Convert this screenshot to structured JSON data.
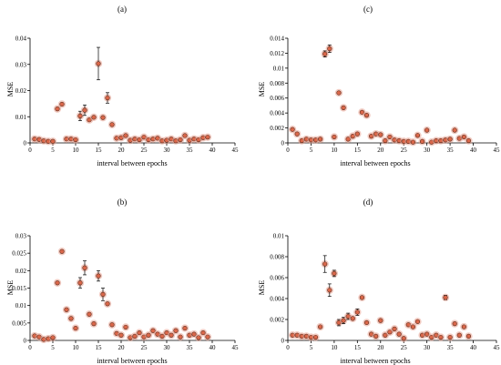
{
  "chart_data": [
    {
      "id": "a",
      "type": "scatter",
      "panel_label": "(a)",
      "xlabel": "interval between epochs",
      "ylabel": "MSE",
      "xlim": [
        0,
        45
      ],
      "ylim": [
        0,
        0.04
      ],
      "xticks": [
        0,
        5,
        10,
        15,
        20,
        25,
        30,
        35,
        40,
        45
      ],
      "yticks": [
        0,
        0.01,
        0.02,
        0.03,
        0.04
      ],
      "xtick_labels": [
        "0",
        "5",
        "10",
        "15",
        "20",
        "25",
        "30",
        "35",
        "40",
        "45"
      ],
      "ytick_labels": [
        "0",
        "0.01",
        "0.02",
        "0.03",
        "0.04"
      ],
      "points": [
        {
          "x": 1,
          "y": 0.0015
        },
        {
          "x": 2,
          "y": 0.0013
        },
        {
          "x": 3,
          "y": 0.0008
        },
        {
          "x": 4,
          "y": 0.0006
        },
        {
          "x": 5,
          "y": 0.0006
        },
        {
          "x": 6,
          "y": 0.013
        },
        {
          "x": 7,
          "y": 0.0148
        },
        {
          "x": 8,
          "y": 0.0015
        },
        {
          "x": 9,
          "y": 0.0015
        },
        {
          "x": 10,
          "y": 0.0012
        },
        {
          "x": 11,
          "y": 0.0103,
          "err": 0.0018
        },
        {
          "x": 12,
          "y": 0.0125,
          "err": 0.002
        },
        {
          "x": 13,
          "y": 0.0088
        },
        {
          "x": 14,
          "y": 0.0098
        },
        {
          "x": 15,
          "y": 0.0303,
          "err": 0.0062
        },
        {
          "x": 16,
          "y": 0.0097
        },
        {
          "x": 17,
          "y": 0.0172,
          "err": 0.002
        },
        {
          "x": 18,
          "y": 0.007
        },
        {
          "x": 19,
          "y": 0.0018
        },
        {
          "x": 20,
          "y": 0.002
        },
        {
          "x": 21,
          "y": 0.0028
        },
        {
          "x": 22,
          "y": 0.001
        },
        {
          "x": 23,
          "y": 0.0015
        },
        {
          "x": 24,
          "y": 0.0012
        },
        {
          "x": 25,
          "y": 0.0022
        },
        {
          "x": 26,
          "y": 0.0012
        },
        {
          "x": 27,
          "y": 0.0015
        },
        {
          "x": 28,
          "y": 0.0018
        },
        {
          "x": 29,
          "y": 0.0008
        },
        {
          "x": 30,
          "y": 0.001
        },
        {
          "x": 31,
          "y": 0.0015
        },
        {
          "x": 32,
          "y": 0.0008
        },
        {
          "x": 33,
          "y": 0.0012
        },
        {
          "x": 34,
          "y": 0.0028
        },
        {
          "x": 35,
          "y": 0.001
        },
        {
          "x": 36,
          "y": 0.0015
        },
        {
          "x": 37,
          "y": 0.0012
        },
        {
          "x": 38,
          "y": 0.002
        },
        {
          "x": 39,
          "y": 0.0022
        }
      ]
    },
    {
      "id": "c",
      "type": "scatter",
      "panel_label": "(c)",
      "xlabel": "interval between epochs",
      "ylabel": "MSE",
      "xlim": [
        0,
        45
      ],
      "ylim": [
        0,
        0.014
      ],
      "xticks": [
        0,
        5,
        10,
        15,
        20,
        25,
        30,
        35,
        40,
        45
      ],
      "yticks": [
        0,
        0.002,
        0.004,
        0.006,
        0.008,
        0.01,
        0.012,
        0.014
      ],
      "xtick_labels": [
        "0",
        "5",
        "10",
        "15",
        "20",
        "25",
        "30",
        "35",
        "40",
        "45"
      ],
      "ytick_labels": [
        "0",
        "0.002",
        "0.004",
        "0.006",
        "0.008",
        "0.01",
        "0.012",
        "0.014"
      ],
      "points": [
        {
          "x": 1,
          "y": 0.0018
        },
        {
          "x": 2,
          "y": 0.0012
        },
        {
          "x": 3,
          "y": 0.0003
        },
        {
          "x": 4,
          "y": 0.0005
        },
        {
          "x": 5,
          "y": 0.0004
        },
        {
          "x": 6,
          "y": 0.0004
        },
        {
          "x": 7,
          "y": 0.0005
        },
        {
          "x": 8,
          "y": 0.0119,
          "err": 0.0004
        },
        {
          "x": 9,
          "y": 0.0126,
          "err": 0.0005
        },
        {
          "x": 10,
          "y": 0.0008
        },
        {
          "x": 11,
          "y": 0.0067
        },
        {
          "x": 12,
          "y": 0.0047
        },
        {
          "x": 13,
          "y": 0.0005
        },
        {
          "x": 14,
          "y": 0.0009
        },
        {
          "x": 15,
          "y": 0.0012
        },
        {
          "x": 16,
          "y": 0.0041
        },
        {
          "x": 17,
          "y": 0.0037
        },
        {
          "x": 18,
          "y": 0.0009
        },
        {
          "x": 19,
          "y": 0.0012
        },
        {
          "x": 20,
          "y": 0.0011
        },
        {
          "x": 21,
          "y": 0.0003
        },
        {
          "x": 22,
          "y": 0.0008
        },
        {
          "x": 23,
          "y": 0.0004
        },
        {
          "x": 24,
          "y": 0.0003
        },
        {
          "x": 25,
          "y": 0.0002
        },
        {
          "x": 26,
          "y": 0.0002
        },
        {
          "x": 27,
          "y": 0.0001
        },
        {
          "x": 28,
          "y": 0.001
        },
        {
          "x": 29,
          "y": 0.0002
        },
        {
          "x": 30,
          "y": 0.0017
        },
        {
          "x": 31,
          "y": 0.0001
        },
        {
          "x": 32,
          "y": 0.0003
        },
        {
          "x": 33,
          "y": 0.0003
        },
        {
          "x": 34,
          "y": 0.0004
        },
        {
          "x": 35,
          "y": 0.0005
        },
        {
          "x": 36,
          "y": 0.0017
        },
        {
          "x": 37,
          "y": 0.0006
        },
        {
          "x": 38,
          "y": 0.0008
        },
        {
          "x": 39,
          "y": 0.0003
        }
      ]
    },
    {
      "id": "b",
      "type": "scatter",
      "panel_label": "(b)",
      "xlabel": "interval between epochs",
      "ylabel": "MSE",
      "xlim": [
        0,
        45
      ],
      "ylim": [
        0,
        0.03
      ],
      "xticks": [
        0,
        5,
        10,
        15,
        20,
        25,
        30,
        35,
        40,
        45
      ],
      "yticks": [
        0,
        0.005,
        0.01,
        0.015,
        0.02,
        0.025,
        0.03
      ],
      "xtick_labels": [
        "0",
        "5",
        "10",
        "15",
        "20",
        "25",
        "30",
        "35",
        "40",
        "45"
      ],
      "ytick_labels": [
        "0",
        "0.005",
        "0.01",
        "0.015",
        "0.02",
        "0.025",
        "0.03"
      ],
      "points": [
        {
          "x": 1,
          "y": 0.0013
        },
        {
          "x": 2,
          "y": 0.001
        },
        {
          "x": 3,
          "y": 0.0003
        },
        {
          "x": 4,
          "y": 0.0005
        },
        {
          "x": 5,
          "y": 0.0008
        },
        {
          "x": 6,
          "y": 0.0165
        },
        {
          "x": 7,
          "y": 0.0255
        },
        {
          "x": 8,
          "y": 0.0088
        },
        {
          "x": 9,
          "y": 0.0063
        },
        {
          "x": 10,
          "y": 0.0035
        },
        {
          "x": 11,
          "y": 0.0165,
          "err": 0.0015
        },
        {
          "x": 12,
          "y": 0.0208,
          "err": 0.002
        },
        {
          "x": 13,
          "y": 0.0075
        },
        {
          "x": 14,
          "y": 0.0048
        },
        {
          "x": 15,
          "y": 0.0185,
          "err": 0.0015
        },
        {
          "x": 16,
          "y": 0.0132,
          "err": 0.0018
        },
        {
          "x": 17,
          "y": 0.0105
        },
        {
          "x": 18,
          "y": 0.0045
        },
        {
          "x": 19,
          "y": 0.002
        },
        {
          "x": 20,
          "y": 0.0015
        },
        {
          "x": 21,
          "y": 0.0038
        },
        {
          "x": 22,
          "y": 0.0008
        },
        {
          "x": 23,
          "y": 0.0012
        },
        {
          "x": 24,
          "y": 0.0022
        },
        {
          "x": 25,
          "y": 0.001
        },
        {
          "x": 26,
          "y": 0.0015
        },
        {
          "x": 27,
          "y": 0.0028
        },
        {
          "x": 28,
          "y": 0.0018
        },
        {
          "x": 29,
          "y": 0.0012
        },
        {
          "x": 30,
          "y": 0.0022
        },
        {
          "x": 31,
          "y": 0.0015
        },
        {
          "x": 32,
          "y": 0.0028
        },
        {
          "x": 33,
          "y": 0.001
        },
        {
          "x": 34,
          "y": 0.0035
        },
        {
          "x": 35,
          "y": 0.0015
        },
        {
          "x": 36,
          "y": 0.0018
        },
        {
          "x": 37,
          "y": 0.0008
        },
        {
          "x": 38,
          "y": 0.0022
        },
        {
          "x": 39,
          "y": 0.001
        }
      ]
    },
    {
      "id": "d",
      "type": "scatter",
      "panel_label": "(d)",
      "xlabel": "interval between epochs",
      "ylabel": "MSE",
      "xlim": [
        0,
        45
      ],
      "ylim": [
        0,
        0.01
      ],
      "xticks": [
        0,
        5,
        10,
        15,
        20,
        25,
        30,
        35,
        40,
        45
      ],
      "yticks": [
        0,
        0.002,
        0.004,
        0.006,
        0.008,
        0.01
      ],
      "xtick_labels": [
        "0",
        "5",
        "10",
        "15",
        "20",
        "25",
        "30",
        "35",
        "40",
        "45"
      ],
      "ytick_labels": [
        "0",
        "0.002",
        "0.004",
        "0.006",
        "0.008",
        "0.01"
      ],
      "points": [
        {
          "x": 1,
          "y": 0.0005
        },
        {
          "x": 2,
          "y": 0.0005
        },
        {
          "x": 3,
          "y": 0.0004
        },
        {
          "x": 4,
          "y": 0.0004
        },
        {
          "x": 5,
          "y": 0.0003
        },
        {
          "x": 6,
          "y": 0.0003
        },
        {
          "x": 7,
          "y": 0.0013
        },
        {
          "x": 8,
          "y": 0.0073,
          "err": 0.0008
        },
        {
          "x": 9,
          "y": 0.0048,
          "err": 0.0006
        },
        {
          "x": 10,
          "y": 0.0064,
          "err": 0.0003
        },
        {
          "x": 11,
          "y": 0.0017,
          "err": 0.0003
        },
        {
          "x": 12,
          "y": 0.0019,
          "err": 0.0003
        },
        {
          "x": 13,
          "y": 0.0023,
          "err": 0.0003
        },
        {
          "x": 14,
          "y": 0.0021
        },
        {
          "x": 15,
          "y": 0.0027,
          "err": 0.0003
        },
        {
          "x": 16,
          "y": 0.0041
        },
        {
          "x": 17,
          "y": 0.0017
        },
        {
          "x": 18,
          "y": 0.0006
        },
        {
          "x": 19,
          "y": 0.0004
        },
        {
          "x": 20,
          "y": 0.0019
        },
        {
          "x": 21,
          "y": 0.0005
        },
        {
          "x": 22,
          "y": 0.0008
        },
        {
          "x": 23,
          "y": 0.0011
        },
        {
          "x": 24,
          "y": 0.0006
        },
        {
          "x": 25,
          "y": 0.0002
        },
        {
          "x": 26,
          "y": 0.0015
        },
        {
          "x": 27,
          "y": 0.0013
        },
        {
          "x": 28,
          "y": 0.0018
        },
        {
          "x": 29,
          "y": 0.0005
        },
        {
          "x": 30,
          "y": 0.0006
        },
        {
          "x": 31,
          "y": 0.0003
        },
        {
          "x": 32,
          "y": 0.0005
        },
        {
          "x": 33,
          "y": 0.0003
        },
        {
          "x": 34,
          "y": 0.0041,
          "err": 0.0002
        },
        {
          "x": 35,
          "y": 0.0003
        },
        {
          "x": 36,
          "y": 0.0016
        },
        {
          "x": 37,
          "y": 0.0005
        },
        {
          "x": 38,
          "y": 0.0013
        },
        {
          "x": 39,
          "y": 0.0004
        }
      ]
    }
  ],
  "colors": {
    "marker_fill": "#d9674a",
    "marker_stroke": "#5a2a1a",
    "marker_halo": "#e8a08f"
  }
}
